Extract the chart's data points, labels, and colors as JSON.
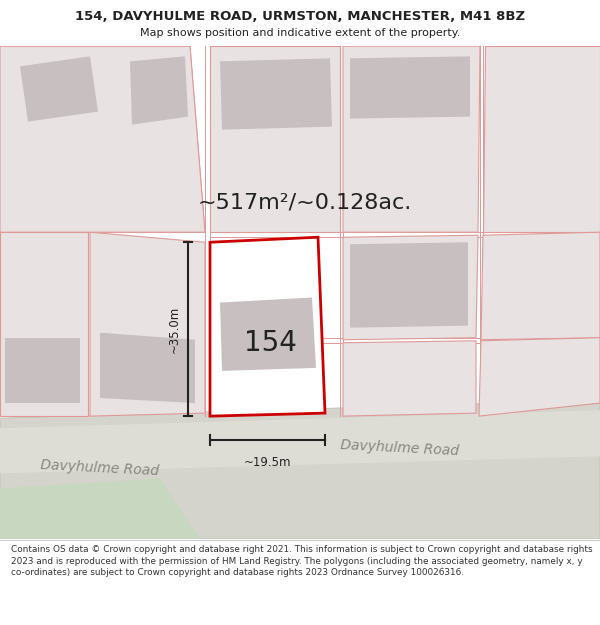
{
  "title_line1": "154, DAVYHULME ROAD, URMSTON, MANCHESTER, M41 8BZ",
  "title_line2": "Map shows position and indicative extent of the property.",
  "area_text": "~517m²/~0.128ac.",
  "house_number": "154",
  "width_label": "~19.5m",
  "height_label": "~35.0m",
  "road_label_left": "Davyhulme Road",
  "road_label_right": "Davyhulme Road",
  "footer_text": "Contains OS data © Crown copyright and database right 2021. This information is subject to Crown copyright and database rights 2023 and is reproduced with the permission of HM Land Registry. The polygons (including the associated geometry, namely x, y co-ordinates) are subject to Crown copyright and database rights 2023 Ordnance Survey 100026316.",
  "text_color": "#222222",
  "map_bg": "#f7f2f2",
  "road_fill": "#d4d4cc",
  "road_edge": "#bbbbaa",
  "green_fill": "#c8d8c0",
  "plot_red": "#cc0000",
  "neighbor_fill": "#e8e2e2",
  "neighbor_edge": "#e09898",
  "building_fill": "#c8c0c0",
  "dim_color": "#222222",
  "road_text_color": "#888880",
  "title_fontsize": 9.5,
  "subtitle_fontsize": 8.0,
  "area_fontsize": 16,
  "num_fontsize": 20,
  "road_fontsize": 10,
  "dim_fontsize": 8.5
}
